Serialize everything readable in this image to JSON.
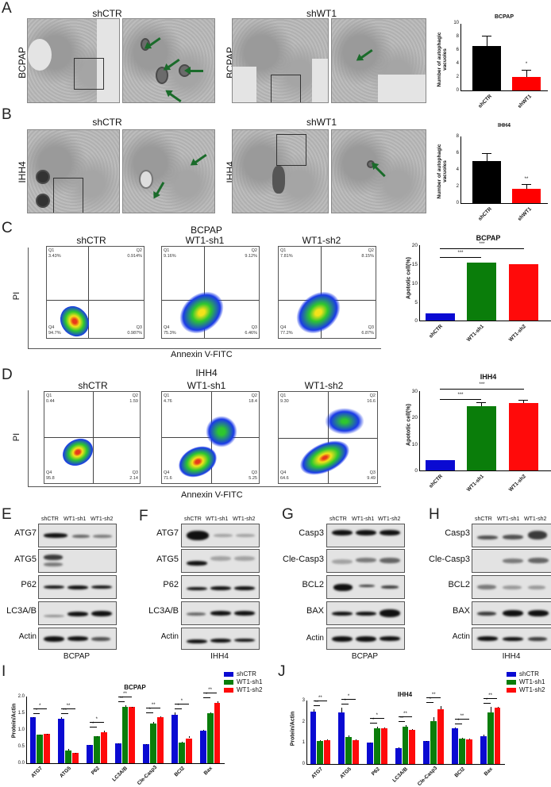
{
  "figure": {
    "panels": {
      "A": {
        "letter": "A",
        "cell_line": "BCPAP",
        "left_title": "shCTR",
        "right_title": "shWT1"
      },
      "B": {
        "letter": "B",
        "cell_line": "IHH4",
        "left_title": "shCTR",
        "right_title": "shWT1"
      },
      "C": {
        "letter": "C",
        "cell_line": "BCPAP",
        "x_axis": "Annexin V-FITC",
        "y_axis": "PI",
        "plots": [
          {
            "title": "shCTR",
            "Q1": "3.43%",
            "Q2": "0.914%",
            "Q3": "0.987%",
            "Q4": "94.7%"
          },
          {
            "title": "WT1-sh1",
            "Q1": "9.16%",
            "Q2": "9.12%",
            "Q3": "6.46%",
            "Q4": "75.3%"
          },
          {
            "title": "WT1-sh2",
            "Q1": "7.81%",
            "Q2": "8.15%",
            "Q3": "6.87%",
            "Q4": "77.2%"
          }
        ],
        "y_ticks": [
          "10^6",
          "10^5",
          "10^4"
        ],
        "x_ticks": [
          "10^4",
          "10^5",
          "10^6",
          "10^7"
        ]
      },
      "D": {
        "letter": "D",
        "cell_line": "IHH4",
        "x_axis": "Annexin V-FITC",
        "y_axis": "PI",
        "plots": [
          {
            "title": "shCTR",
            "Q1": "0.44",
            "Q2": "1.59",
            "Q3": "2.14",
            "Q4": "95.8"
          },
          {
            "title": "WT1-sh1",
            "Q1": "4.76",
            "Q2": "18.4",
            "Q3": "5.25",
            "Q4": "71.6"
          },
          {
            "title": "WT1-sh2",
            "Q1": "9.30",
            "Q2": "16.6",
            "Q3": "9.49",
            "Q4": "64.6"
          }
        ],
        "y_ticks": [
          "10^6",
          "10^5",
          "10^4",
          "10^3"
        ],
        "x_ticks": [
          "10^3",
          "10^4",
          "10^5",
          "10^6",
          "10^7"
        ]
      },
      "E": {
        "letter": "E",
        "cell_line": "BCPAP",
        "lanes": [
          "shCTR",
          "WT1-sh1",
          "WT1-sh2"
        ],
        "rows": [
          "ATG7",
          "ATG5",
          "P62",
          "LC3A/B",
          "Actin"
        ]
      },
      "F": {
        "letter": "F",
        "cell_line": "IHH4",
        "lanes": [
          "shCTR",
          "WT1-sh1",
          "WT1-sh2"
        ],
        "rows": [
          "ATG7",
          "ATG5",
          "P62",
          "LC3A/B",
          "Actin"
        ]
      },
      "G": {
        "letter": "G",
        "cell_line": "BCPAP",
        "lanes": [
          "shCTR",
          "WT1-sh1",
          "WT1-sh2"
        ],
        "rows": [
          "Casp3",
          "Cle-Casp3",
          "BCL2",
          "BAX",
          "Actin"
        ]
      },
      "H": {
        "letter": "H",
        "cell_line": "IHH4",
        "lanes": [
          "shCTR",
          "WT1-sh1",
          "WT1-sh2"
        ],
        "rows": [
          "Casp3",
          "Cle-Casp3",
          "BCL2",
          "BAX",
          "Actin"
        ]
      },
      "I": {
        "letter": "I"
      },
      "J": {
        "letter": "J"
      }
    },
    "colors": {
      "shCTR": "#0a0ad2",
      "WT1_sh1": "#0a7d0a",
      "WT1_sh2": "#ff0a0a",
      "black_bar": "#000000",
      "arrow": "#1a6b2a"
    }
  },
  "chart_data": [
    {
      "id": "A_bar",
      "type": "bar",
      "title": "BCPAP",
      "ylabel": "Number of autophagic vacuoles",
      "categories": [
        "shCTR",
        "shWT1"
      ],
      "values": [
        6.7,
        2.0
      ],
      "errors": [
        1.5,
        1.0
      ],
      "ylim": [
        0,
        10
      ],
      "yticks": [
        0,
        2,
        4,
        6,
        8,
        10
      ],
      "significance": [
        "",
        "*"
      ],
      "colors": [
        "#000000",
        "#ff0000"
      ]
    },
    {
      "id": "B_bar",
      "type": "bar",
      "title": "IHH4",
      "ylabel": "Number of autophagic vacuoles",
      "categories": [
        "shCTR",
        "shWT1"
      ],
      "values": [
        5.0,
        1.7
      ],
      "errors": [
        1.0,
        0.6
      ],
      "ylim": [
        0,
        8
      ],
      "yticks": [
        0,
        2,
        4,
        6,
        8
      ],
      "significance": [
        "",
        "**"
      ],
      "colors": [
        "#000000",
        "#ff0000"
      ]
    },
    {
      "id": "C_bar",
      "type": "bar",
      "title": "BCPAP",
      "ylabel": "Apototic cell(%)",
      "categories": [
        "shCTR",
        "WT1-sh1",
        "WT1-sh2"
      ],
      "values": [
        2.0,
        15.4,
        14.9
      ],
      "errors": [
        0.2,
        0.3,
        0.2
      ],
      "ylim": [
        0,
        20
      ],
      "yticks": [
        0,
        5,
        10,
        15,
        20
      ],
      "comparisons": [
        {
          "from": "shCTR",
          "to": "WT1-sh1",
          "label": "***"
        },
        {
          "from": "shCTR",
          "to": "WT1-sh2",
          "label": "***"
        }
      ]
    },
    {
      "id": "D_bar",
      "type": "bar",
      "title": "IHH4",
      "ylabel": "Apototic cell(%)",
      "categories": [
        "shCTR",
        "WT1-sh1",
        "WT1-sh2"
      ],
      "values": [
        4.0,
        24.3,
        25.5
      ],
      "errors": [
        0.3,
        1.6,
        1.1
      ],
      "ylim": [
        0,
        30
      ],
      "yticks": [
        0,
        10,
        20,
        30
      ],
      "comparisons": [
        {
          "from": "shCTR",
          "to": "WT1-sh1",
          "label": "***"
        },
        {
          "from": "shCTR",
          "to": "WT1-sh2",
          "label": "***"
        }
      ]
    },
    {
      "id": "I_bar",
      "type": "bar",
      "title": "BCPAP",
      "ylabel": "Protein/Actin",
      "ylim": [
        0,
        2.0
      ],
      "yticks": [
        "0.0",
        "0.5",
        "1.0",
        "1.5",
        "2.0"
      ],
      "categories": [
        "ATG7",
        "ATG5",
        "P62",
        "LC3A/B",
        "Cle-Casp3",
        "BCl2",
        "Bax"
      ],
      "series": [
        {
          "name": "shCTR",
          "values": [
            1.37,
            1.33,
            0.54,
            0.59,
            0.56,
            1.45,
            0.97
          ],
          "errors": [
            0.02,
            0.06,
            0.01,
            0.01,
            0.01,
            0.07,
            0.02
          ]
        },
        {
          "name": "WT1-sh1",
          "values": [
            0.85,
            0.37,
            0.8,
            1.68,
            1.19,
            0.63,
            1.5
          ],
          "errors": [
            0.01,
            0.05,
            0.02,
            0.06,
            0.06,
            0.02,
            0.02
          ]
        },
        {
          "name": "WT1-sh2",
          "values": [
            0.87,
            0.31,
            0.93,
            1.69,
            1.38,
            0.75,
            1.82
          ],
          "errors": [
            0.01,
            0.01,
            0.05,
            0.01,
            0.02,
            0.06,
            0.03
          ]
        }
      ],
      "significance": [
        [
          "*",
          "*"
        ],
        [
          "**",
          "**"
        ],
        [
          "*",
          "*"
        ],
        [
          "**",
          "**"
        ],
        [
          "*",
          "**"
        ],
        [
          "*",
          "*"
        ],
        [
          "*",
          "**"
        ]
      ],
      "legend": [
        "shCTR",
        "WT1-sh1",
        "WT1-sh2"
      ],
      "legend_position": "top-right"
    },
    {
      "id": "J_bar",
      "type": "bar",
      "title": "IHH4",
      "ylabel": "Protein/Actin",
      "ylim": [
        0,
        3
      ],
      "yticks": [
        "0",
        "1",
        "2",
        "3"
      ],
      "categories": [
        "ATG7",
        "ATG5",
        "P62",
        "LC3A/B",
        "Cle-Casp3",
        "BCl2",
        "Bax"
      ],
      "series": [
        {
          "name": "shCTR",
          "values": [
            2.48,
            2.42,
            1.0,
            0.75,
            1.07,
            1.69,
            1.3
          ],
          "errors": [
            0.12,
            0.24,
            0.01,
            0.05,
            0.02,
            0.05,
            0.1
          ]
        },
        {
          "name": "WT1-sh1",
          "values": [
            1.07,
            1.26,
            1.69,
            1.78,
            2.04,
            1.19,
            2.45
          ],
          "errors": [
            0.04,
            0.08,
            0.06,
            0.06,
            0.16,
            0.04,
            0.24
          ]
        },
        {
          "name": "WT1-sh2",
          "values": [
            1.14,
            1.11,
            1.68,
            1.63,
            2.6,
            1.17,
            2.65
          ],
          "errors": [
            0.02,
            0.05,
            0.03,
            0.02,
            0.12,
            0.02,
            0.05
          ]
        }
      ],
      "significance": [
        [
          "**",
          "**"
        ],
        [
          "*",
          "*"
        ],
        [
          "*",
          "*"
        ],
        [
          "**",
          "**"
        ],
        [
          "*",
          "**"
        ],
        [
          "*",
          "**"
        ],
        [
          "*",
          "**"
        ]
      ],
      "legend": [
        "shCTR",
        "WT1-sh1",
        "WT1-sh2"
      ],
      "legend_position": "top-right"
    }
  ]
}
